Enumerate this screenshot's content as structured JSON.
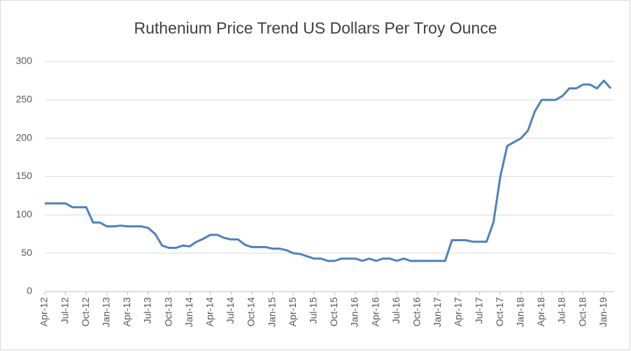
{
  "chart_data": {
    "type": "line",
    "title": "Ruthenium Price Trend US Dollars Per Troy Ounce",
    "categories": [
      "Apr-12",
      null,
      null,
      "Jul-12",
      null,
      null,
      "Oct-12",
      null,
      null,
      "Jan-13",
      null,
      null,
      "Apr-13",
      null,
      null,
      "Jul-13",
      null,
      null,
      "Oct-13",
      null,
      null,
      "Jan-14",
      null,
      null,
      "Apr-14",
      null,
      null,
      "Jul-14",
      null,
      null,
      "Oct-14",
      null,
      null,
      "Jan-15",
      null,
      null,
      "Apr-15",
      null,
      null,
      "Jul-15",
      null,
      null,
      "Oct-15",
      null,
      null,
      "Jan-16",
      null,
      null,
      "Apr-16",
      null,
      null,
      "Jul-16",
      null,
      null,
      "Oct-16",
      null,
      null,
      "Jan-17",
      null,
      null,
      "Apr-17",
      null,
      null,
      "Jul-17",
      null,
      null,
      "Oct-17",
      null,
      null,
      "Jan-18",
      null,
      null,
      "Apr-18",
      null,
      null,
      "Jul-18",
      null,
      null,
      "Oct-18",
      null,
      null,
      "Jan-19",
      null
    ],
    "series": [
      {
        "name": "Ruthenium",
        "color": "#4f81bd",
        "values": [
          115,
          115,
          115,
          115,
          110,
          110,
          110,
          90,
          90,
          85,
          85,
          86,
          85,
          85,
          85,
          83,
          75,
          60,
          57,
          57,
          60,
          59,
          65,
          69,
          74,
          74,
          70,
          68,
          68,
          61,
          58,
          58,
          58,
          56,
          56,
          54,
          50,
          49,
          46,
          43,
          43,
          40,
          40,
          43,
          43,
          43,
          40,
          43,
          40,
          43,
          43,
          40,
          43,
          40,
          40,
          40,
          40,
          40,
          40,
          67,
          67,
          67,
          65,
          65,
          65,
          90,
          150,
          190,
          195,
          200,
          210,
          235,
          250,
          250,
          250,
          255,
          265,
          265,
          270,
          270,
          265,
          275,
          265
        ]
      }
    ],
    "ylim": [
      0,
      300
    ],
    "yticks": [
      0,
      50,
      100,
      150,
      200,
      250,
      300
    ],
    "grid": true
  }
}
